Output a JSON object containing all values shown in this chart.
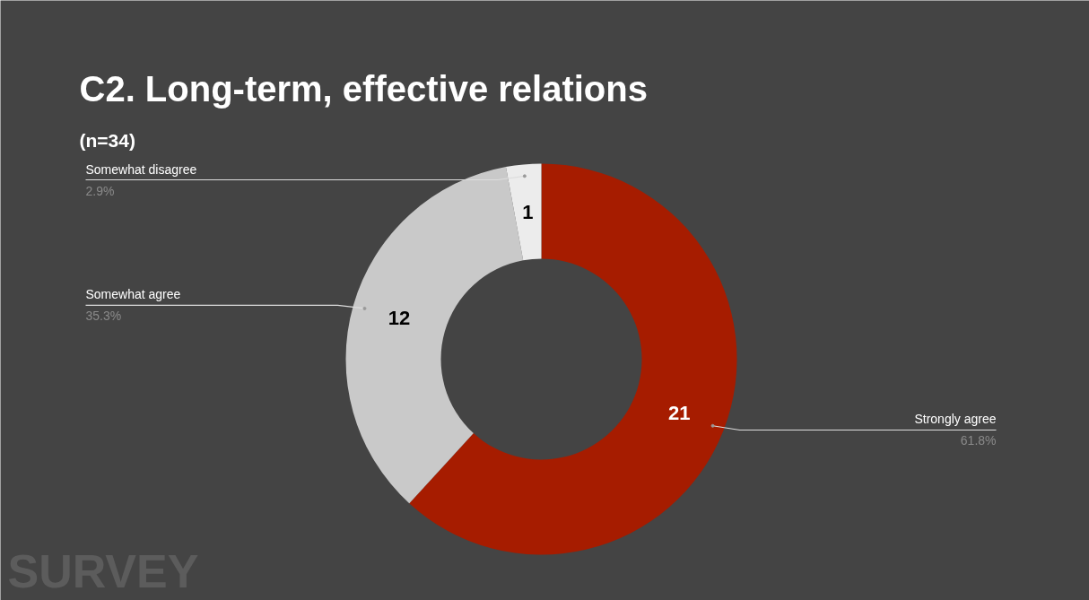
{
  "chart_data": {
    "type": "donut",
    "title": "C2. Long-term, effective relations",
    "subtitle": "(n=34)",
    "categories": [
      "Strongly agree",
      "Somewhat agree",
      "Somewhat disagree"
    ],
    "values": [
      61.8,
      35.3,
      2.9
    ],
    "colors": [
      "#a61c00",
      "#c9c9c9",
      "#ececec"
    ],
    "value_labels": [
      "61.8%",
      "35.3%",
      "2.9%"
    ],
    "annotations": [
      {
        "text": "21",
        "x": "Strongly agree"
      },
      {
        "text": "12",
        "x": "Somewhat agree"
      },
      {
        "text": "1",
        "x": "Somewhat disagree"
      },
      "SURVEY"
    ]
  }
}
